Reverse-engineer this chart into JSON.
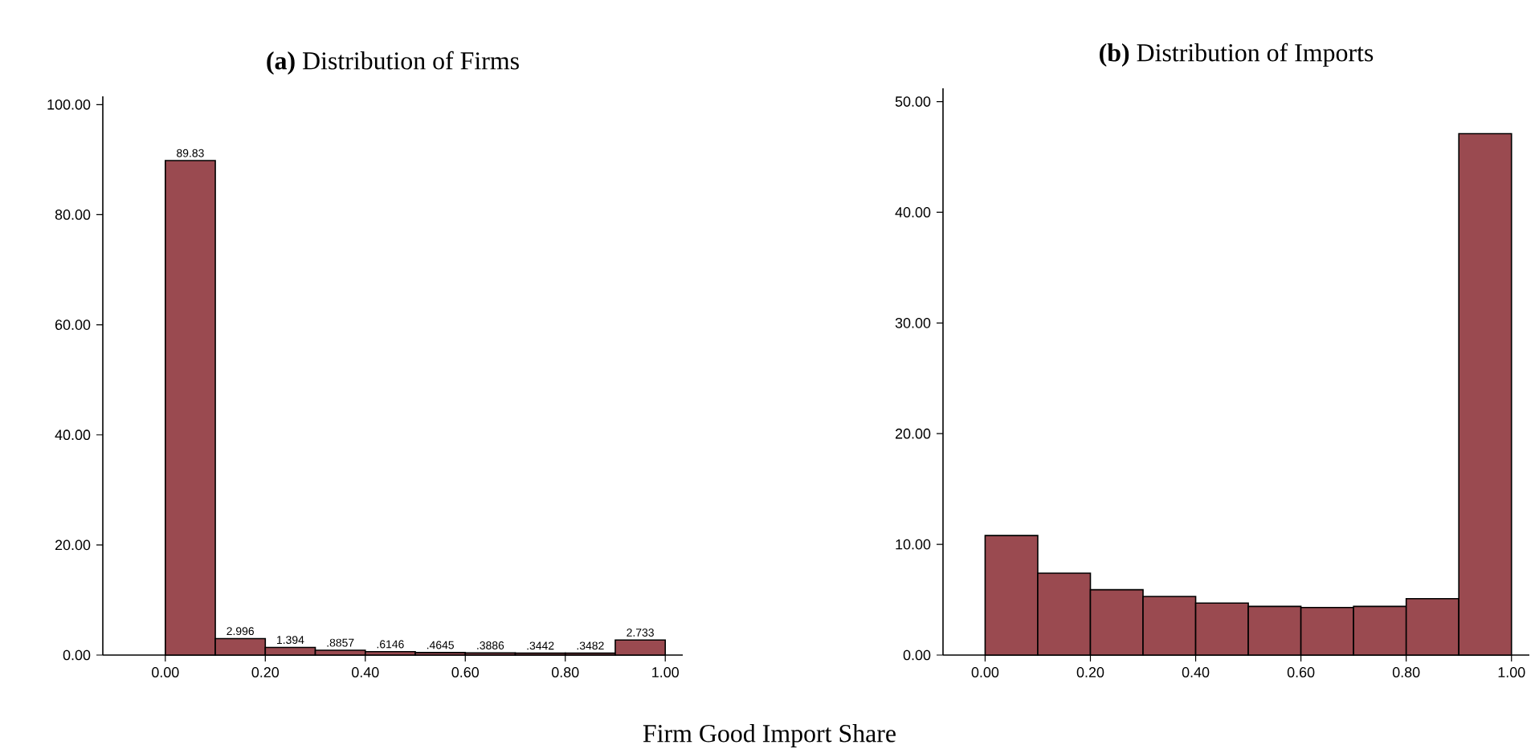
{
  "chart_data": [
    {
      "type": "histogram",
      "title": "**(a)** Distribution of Firms",
      "bins": [
        0,
        0.1,
        0.2,
        0.3,
        0.4,
        0.5,
        0.6,
        0.7,
        0.8,
        0.9,
        1.0
      ],
      "values": [
        89.83,
        2.996,
        1.394,
        0.8857,
        0.6146,
        0.4645,
        0.3886,
        0.3442,
        0.3482,
        2.733
      ],
      "value_labels": [
        "89.83",
        "2.996",
        "1.394",
        ".8857",
        ".6146",
        ".4645",
        ".3886",
        ".3442",
        ".3482",
        "2.733"
      ],
      "color": "#9a4a50",
      "xlim": [
        -0.125,
        1.035
      ],
      "ylim": [
        0,
        101.5
      ],
      "xticks": [
        {
          "value": 0,
          "label": "0.00"
        },
        {
          "value": 0.2,
          "label": "0.20"
        },
        {
          "value": 0.4,
          "label": "0.40"
        },
        {
          "value": 0.6,
          "label": "0.60"
        },
        {
          "value": 0.8,
          "label": "0.80"
        },
        {
          "value": 1,
          "label": "1.00"
        }
      ],
      "yticks": [
        {
          "value": 0,
          "label": "0.00"
        },
        {
          "value": 20,
          "label": "20.00"
        },
        {
          "value": 40,
          "label": "40.00"
        },
        {
          "value": 60,
          "label": "60.00"
        },
        {
          "value": 80,
          "label": "80.00"
        },
        {
          "value": 100,
          "label": "100.00"
        }
      ],
      "annotations": [
        "Firm Good Import Share"
      ]
    },
    {
      "type": "histogram",
      "title": "**(b)** Distribution of Imports",
      "bins": [
        0,
        0.1,
        0.2,
        0.3,
        0.4,
        0.5,
        0.6,
        0.7,
        0.8,
        0.9,
        1.0
      ],
      "values": [
        10.8,
        7.4,
        5.9,
        5.3,
        4.7,
        4.4,
        4.3,
        4.4,
        5.1,
        47.1
      ],
      "color": "#9a4a50",
      "xlim": [
        -0.08,
        1.034
      ],
      "ylim": [
        0,
        51.2
      ],
      "xticks": [
        {
          "value": 0,
          "label": "0.00"
        },
        {
          "value": 0.2,
          "label": "0.20"
        },
        {
          "value": 0.4,
          "label": "0.40"
        },
        {
          "value": 0.6,
          "label": "0.60"
        },
        {
          "value": 0.8,
          "label": "0.80"
        },
        {
          "value": 1,
          "label": "1.00"
        }
      ],
      "yticks": [
        {
          "value": 0,
          "label": "0.00"
        },
        {
          "value": 10,
          "label": "10.00"
        },
        {
          "value": 20,
          "label": "20.00"
        },
        {
          "value": 30,
          "label": "30.00"
        },
        {
          "value": 40,
          "label": "40.00"
        },
        {
          "value": 50,
          "label": "50.00"
        }
      ]
    }
  ]
}
